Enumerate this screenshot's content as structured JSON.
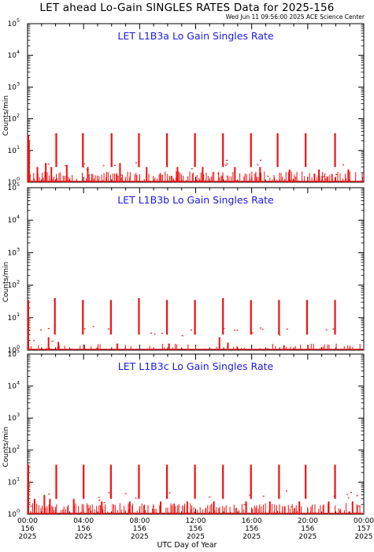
{
  "page": {
    "title": "LET ahead Lo-Gain SINGLES RATES Data for 2025-156",
    "timestamp": "Wed Jun 11 09:56:00 2025 ACE Science Center",
    "xlabel": "UTC Day of Year"
  },
  "colors": {
    "data": "#ee1111",
    "title": "#1a1ae6",
    "axis": "#000000"
  },
  "chart_data": [
    {
      "type": "line",
      "title": "LET L1B3a Lo Gain Singles Rate",
      "ylabel": "Counts/min",
      "yscale": "log",
      "ylim": [
        1,
        100000
      ],
      "xlim": [
        0,
        24
      ],
      "series": [
        {
          "color": "#ee1111",
          "spikes": [
            {
              "x": 0.05,
              "y": 30
            },
            {
              "x": 0.1,
              "y": 20
            },
            {
              "x": 2.05,
              "y": 35
            },
            {
              "x": 3.95,
              "y": 35
            },
            {
              "x": 6.0,
              "y": 35
            },
            {
              "x": 7.95,
              "y": 35
            },
            {
              "x": 9.95,
              "y": 35
            },
            {
              "x": 11.95,
              "y": 35
            },
            {
              "x": 13.95,
              "y": 35
            },
            {
              "x": 15.95,
              "y": 35
            },
            {
              "x": 17.85,
              "y": 35
            },
            {
              "x": 19.85,
              "y": 35
            },
            {
              "x": 21.95,
              "y": 35
            }
          ],
          "bursts": [
            {
              "x": 0.7,
              "y": 3
            },
            {
              "x": 1.3,
              "y": 4
            },
            {
              "x": 1.7,
              "y": 3
            },
            {
              "x": 2.8,
              "y": 3.5
            },
            {
              "x": 4.3,
              "y": 3
            },
            {
              "x": 6.6,
              "y": 4
            },
            {
              "x": 8.5,
              "y": 3
            },
            {
              "x": 10.7,
              "y": 3
            },
            {
              "x": 12.5,
              "y": 3
            },
            {
              "x": 14.8,
              "y": 3
            },
            {
              "x": 16.6,
              "y": 3
            },
            {
              "x": 18.7,
              "y": 2.5
            },
            {
              "x": 20.8,
              "y": 2.5
            },
            {
              "x": 22.9,
              "y": 2.5
            }
          ]
        }
      ]
    },
    {
      "type": "line",
      "title": "LET L1B3b Lo Gain Singles Rate",
      "ylabel": "Counts/min",
      "yscale": "log",
      "ylim": [
        1,
        100000
      ],
      "xlim": [
        0,
        24
      ],
      "series": [
        {
          "color": "#ee1111",
          "spikes": [
            {
              "x": 0.05,
              "y": 35
            },
            {
              "x": 1.95,
              "y": 40
            },
            {
              "x": 3.95,
              "y": 35
            },
            {
              "x": 5.95,
              "y": 35
            },
            {
              "x": 7.95,
              "y": 40
            },
            {
              "x": 9.95,
              "y": 35
            },
            {
              "x": 11.95,
              "y": 35
            },
            {
              "x": 13.95,
              "y": 40
            },
            {
              "x": 15.95,
              "y": 35
            },
            {
              "x": 17.95,
              "y": 35
            },
            {
              "x": 19.95,
              "y": 35
            },
            {
              "x": 21.95,
              "y": 35
            }
          ],
          "bursts": [
            {
              "x": 1.5,
              "y": 2.5
            },
            {
              "x": 2.2,
              "y": 1.8
            },
            {
              "x": 6.4,
              "y": 1.6
            },
            {
              "x": 10.1,
              "y": 1.6
            },
            {
              "x": 13.7,
              "y": 2.5
            },
            {
              "x": 14.3,
              "y": 1.7
            },
            {
              "x": 18.3,
              "y": 1.4
            }
          ]
        }
      ]
    },
    {
      "type": "line",
      "title": "LET L1B3c Lo Gain Singles Rate",
      "ylabel": "Counts/min",
      "yscale": "log",
      "ylim": [
        1,
        100000
      ],
      "xlim": [
        0,
        24
      ],
      "xticks": [
        {
          "x": 0,
          "time": "00:00",
          "doy": "156",
          "year": "2025"
        },
        {
          "x": 4,
          "time": "04:00",
          "doy": "156",
          "year": "2025"
        },
        {
          "x": 8,
          "time": "08:00",
          "doy": "156",
          "year": "2025"
        },
        {
          "x": 12,
          "time": "12:00",
          "doy": "156",
          "year": "2025"
        },
        {
          "x": 16,
          "time": "16:00",
          "doy": "156",
          "year": "2025"
        },
        {
          "x": 20,
          "time": "20:00",
          "doy": "156",
          "year": "2025"
        },
        {
          "x": 24,
          "time": "00:00",
          "doy": "157",
          "year": "2025"
        }
      ],
      "series": [
        {
          "color": "#ee1111",
          "spikes": [
            {
              "x": 0.05,
              "y": 35
            },
            {
              "x": 2.05,
              "y": 35
            },
            {
              "x": 4.0,
              "y": 35
            },
            {
              "x": 5.95,
              "y": 35
            },
            {
              "x": 7.95,
              "y": 35
            },
            {
              "x": 9.95,
              "y": 35
            },
            {
              "x": 11.95,
              "y": 35
            },
            {
              "x": 13.95,
              "y": 35
            },
            {
              "x": 15.95,
              "y": 35
            },
            {
              "x": 17.95,
              "y": 35
            },
            {
              "x": 19.85,
              "y": 35
            },
            {
              "x": 21.95,
              "y": 35
            }
          ],
          "bursts": [
            {
              "x": 0.5,
              "y": 3
            },
            {
              "x": 1.2,
              "y": 4
            },
            {
              "x": 1.6,
              "y": 3
            },
            {
              "x": 3.3,
              "y": 3
            },
            {
              "x": 5.3,
              "y": 2.5
            },
            {
              "x": 7.3,
              "y": 2.5
            },
            {
              "x": 9.5,
              "y": 2.5
            },
            {
              "x": 11.4,
              "y": 2.5
            },
            {
              "x": 13.3,
              "y": 2.5
            },
            {
              "x": 15.6,
              "y": 2.5
            },
            {
              "x": 17.3,
              "y": 2.5
            },
            {
              "x": 19.4,
              "y": 2.5
            },
            {
              "x": 21.5,
              "y": 2.5
            },
            {
              "x": 23.2,
              "y": 2.5
            }
          ]
        }
      ]
    }
  ]
}
